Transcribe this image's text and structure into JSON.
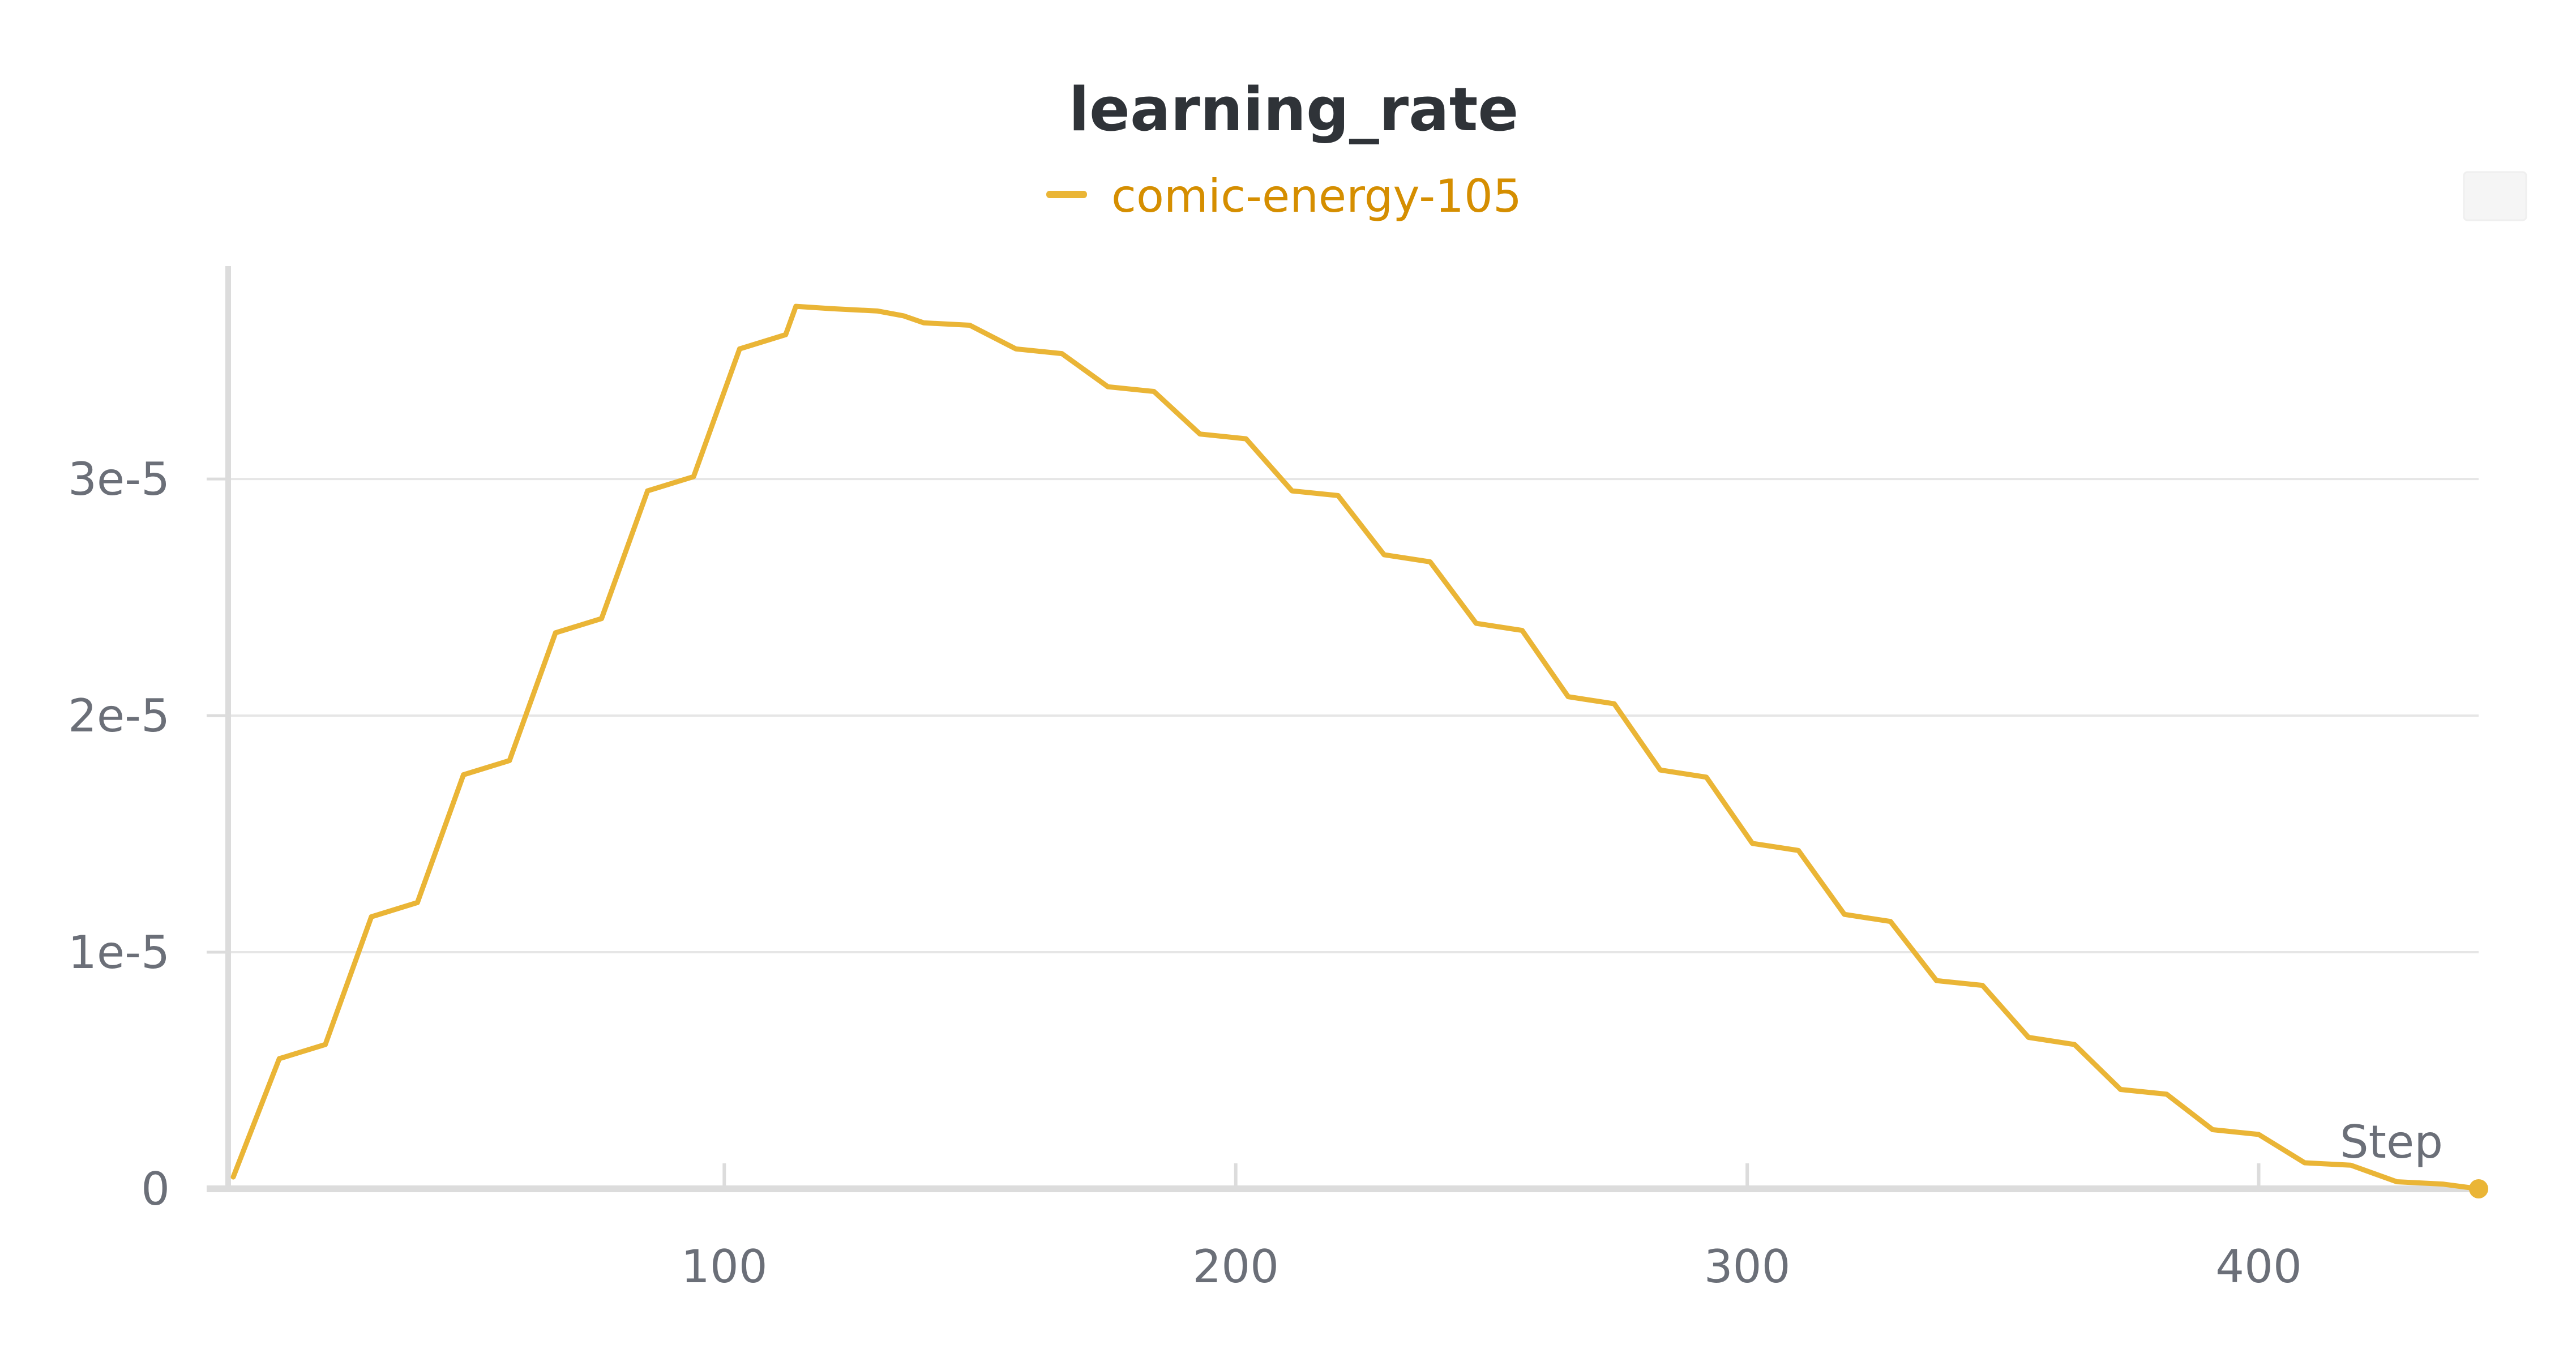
{
  "chart_data": {
    "type": "line",
    "title": "learning_rate",
    "xlabel": "Step",
    "ylabel": "",
    "xlim": [
      3,
      443
    ],
    "ylim": [
      0,
      3.9e-05
    ],
    "x_ticks": [
      100,
      200,
      300,
      400
    ],
    "x_tick_labels": [
      "100",
      "200",
      "300",
      "400"
    ],
    "y_ticks": [
      0,
      1e-05,
      2e-05,
      3e-05
    ],
    "y_tick_labels": [
      "0",
      "1e-5",
      "2e-5",
      "3e-5"
    ],
    "grid": true,
    "legend_position": "top-center",
    "series": [
      {
        "name": "comic-energy-105",
        "color": "#EAB536",
        "x": [
          4,
          13,
          22,
          31,
          40,
          49,
          58,
          67,
          76,
          85,
          94,
          103,
          112,
          114,
          121,
          130,
          135,
          139,
          148,
          157,
          166,
          175,
          184,
          193,
          202,
          211,
          220,
          229,
          238,
          247,
          256,
          265,
          274,
          283,
          292,
          301,
          310,
          319,
          328,
          337,
          346,
          355,
          364,
          373,
          382,
          391,
          400,
          409,
          418,
          427,
          436,
          443
        ],
        "y": [
          5e-07,
          5.5e-06,
          6.1e-06,
          1.15e-05,
          1.21e-05,
          1.75e-05,
          1.81e-05,
          2.35e-05,
          2.41e-05,
          2.95e-05,
          3.01e-05,
          3.55e-05,
          3.61e-05,
          3.73e-05,
          3.72e-05,
          3.71e-05,
          3.69e-05,
          3.66e-05,
          3.65e-05,
          3.55e-05,
          3.53e-05,
          3.39e-05,
          3.37e-05,
          3.19e-05,
          3.17e-05,
          2.95e-05,
          2.93e-05,
          2.68e-05,
          2.65e-05,
          2.39e-05,
          2.36e-05,
          2.08e-05,
          2.05e-05,
          1.77e-05,
          1.74e-05,
          1.46e-05,
          1.43e-05,
          1.16e-05,
          1.13e-05,
          8.8e-06,
          8.6e-06,
          6.4e-06,
          6.1e-06,
          4.2e-06,
          4e-06,
          2.5e-06,
          2.3e-06,
          1.1e-06,
          1e-06,
          3e-07,
          2e-07,
          0.0
        ]
      }
    ]
  },
  "colors": {
    "series": "#EAB536",
    "legend_text": "#D58E00",
    "grid": "#e6e6e6",
    "axis": "#dcdcdc",
    "tick_text": "#6b6f78",
    "title_text": "#2f3338"
  },
  "toolbar": {
    "icon": "panel-button-icon"
  }
}
